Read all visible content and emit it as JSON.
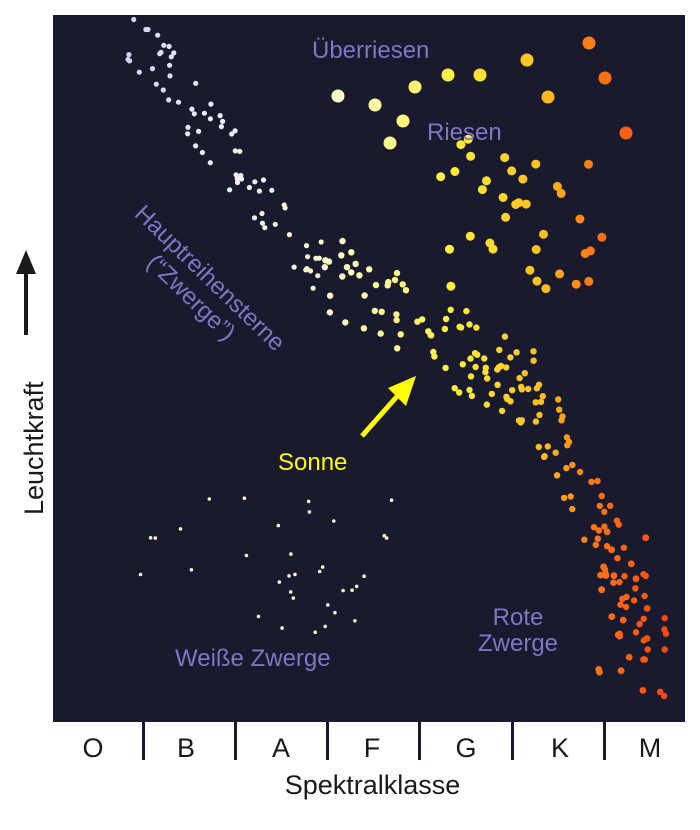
{
  "labels": {
    "supergiants": "Überriesen",
    "giants": "Riesen",
    "main_sequence_line1": "Hauptreihensterne",
    "main_sequence_line2": "(“Zwerge”)",
    "sun": "Sonne",
    "red_dwarfs_line1": "Rote",
    "red_dwarfs_line2": "Zwerge",
    "white_dwarfs": "Weiße Zwerge"
  },
  "axes": {
    "x_label": "Spektralklasse",
    "y_label": "Leuchtkraft",
    "spectral_classes": [
      "O",
      "B",
      "A",
      "F",
      "G",
      "K",
      "M"
    ]
  },
  "colors": {
    "background": "#1a1a2e",
    "label": "#7b78c4",
    "sun_label": "#ffff00",
    "arrow": "#ffff00"
  }
}
